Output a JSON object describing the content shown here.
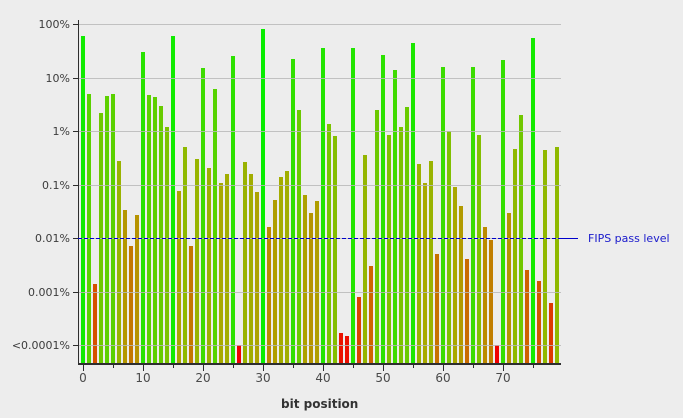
{
  "chart_data": {
    "type": "bar",
    "title": "",
    "xlabel": "bit position",
    "ylabel": "",
    "scale": "log-y",
    "grid": true,
    "background_color": "#ededed",
    "y_tick_labels": [
      "100%",
      "10%",
      "1%",
      "0.1%",
      "0.01%",
      "0.001%",
      "<0.0001%"
    ],
    "y_tick_values_percent": [
      100,
      10,
      1,
      0.1,
      0.01,
      0.001,
      0.0001
    ],
    "ylim_percent": [
      0.0001,
      100
    ],
    "x_tick_labels": [
      "0",
      "10",
      "20",
      "30",
      "40",
      "50",
      "60",
      "70"
    ],
    "x_tick_values": [
      0,
      10,
      20,
      30,
      40,
      50,
      60,
      70
    ],
    "x_minor_tick_values": [
      5,
      15,
      25,
      35,
      45,
      55,
      65,
      75
    ],
    "annotation": {
      "label": "FIPS pass level",
      "y_percent": 0.01,
      "color": "#1a1acc",
      "line_color": "#0000cc"
    },
    "x": [
      0,
      1,
      2,
      3,
      4,
      5,
      6,
      7,
      8,
      9,
      10,
      11,
      12,
      13,
      14,
      15,
      16,
      17,
      18,
      19,
      20,
      21,
      22,
      23,
      24,
      25,
      26,
      27,
      28,
      29,
      30,
      31,
      32,
      33,
      34,
      35,
      36,
      37,
      38,
      39,
      40,
      41,
      42,
      43,
      44,
      45,
      46,
      47,
      48,
      49,
      50,
      51,
      52,
      53,
      54,
      55,
      56,
      57,
      58,
      59,
      60,
      61,
      62,
      63,
      64,
      65,
      66,
      67,
      68,
      69,
      70,
      71,
      72,
      73,
      74,
      75,
      76,
      77,
      78,
      79
    ],
    "values_percent": [
      60,
      5,
      0.0014,
      2.2,
      4.5,
      5,
      0.27,
      0.033,
      0.007,
      0.027,
      30,
      4.7,
      4.3,
      2.9,
      1.2,
      60,
      0.076,
      0.5,
      0.007,
      0.3,
      15,
      0.2,
      6,
      0.105,
      0.16,
      25,
      0.0001,
      0.26,
      0.16,
      0.071,
      79,
      0.016,
      0.051,
      0.14,
      0.18,
      22,
      2.5,
      0.063,
      0.029,
      0.05,
      36,
      1.35,
      0.8,
      0.00017,
      0.00015,
      36,
      0.0008,
      0.35,
      0.003,
      2.5,
      26,
      0.85,
      14,
      1.2,
      2.8,
      44,
      0.24,
      0.105,
      0.27,
      0.005,
      16,
      1.0,
      0.09,
      0.04,
      0.004,
      16,
      0.86,
      0.016,
      0.009,
      0.0001,
      21,
      0.029,
      0.46,
      2.0,
      0.0025,
      55,
      0.0016,
      0.45,
      0.0006,
      0.5
    ],
    "bar_color_scale": {
      "description": "color interpolated by log10(value): green at 100%, olive near 0.01%, red at <0.0001%",
      "high_color": "#0ce600",
      "mid_color": "#a8a000",
      "low_color": "#f00000"
    },
    "colors": {
      "gridline": "#b9b9b9",
      "axis": "#2e2e2e",
      "tick_label": "#3c3c3c",
      "x_axis_title": "#333333"
    }
  }
}
